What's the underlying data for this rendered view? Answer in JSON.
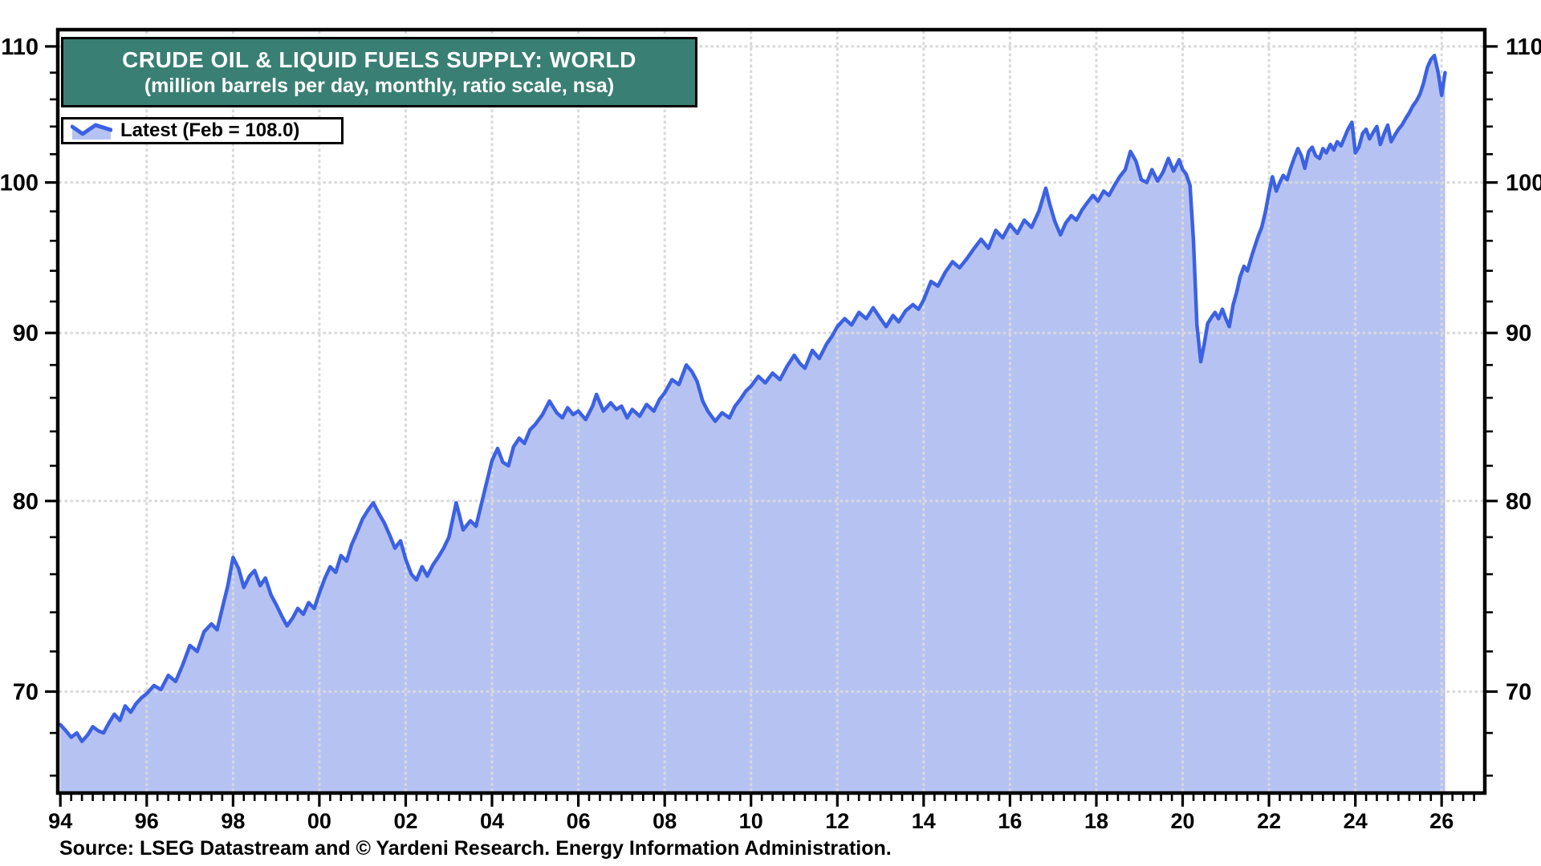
{
  "title": {
    "line1": "CRUDE OIL & LIQUID FUELS SUPPLY: WORLD",
    "line2": "(million barrels per day, monthly, ratio scale, nsa)"
  },
  "legend": {
    "label": "Latest (Feb = 108.0)",
    "latest_month": "Feb",
    "latest_value": 108.0
  },
  "source": "Source: LSEG Datastream and © Yardeni Research. Energy Information Administration.",
  "colors": {
    "title_bg": "#3a7f73",
    "line": "#3c61e2",
    "fill": "#b6c3f2",
    "grid": "#d9d9d9",
    "axis": "#000000",
    "text": "#000000"
  },
  "chart_data": {
    "type": "area",
    "title": "CRUDE OIL & LIQUID FUELS SUPPLY: WORLD",
    "subtitle": "(million barrels per day, monthly, ratio scale, nsa)",
    "series_name": "World crude oil & liquid fuels supply",
    "units": "million barrels per day",
    "frequency": "monthly",
    "y_scale": "log",
    "xlim": [
      1993.94,
      2027.0
    ],
    "ylim": [
      65.2,
      111.3
    ],
    "grid": true,
    "x_tick_years": [
      1994,
      1996,
      1998,
      2000,
      2002,
      2004,
      2006,
      2008,
      2010,
      2012,
      2014,
      2016,
      2018,
      2020,
      2022,
      2024,
      2026
    ],
    "x_tick_labels": [
      "94",
      "96",
      "98",
      "00",
      "02",
      "04",
      "06",
      "08",
      "10",
      "12",
      "14",
      "16",
      "18",
      "20",
      "22",
      "24",
      "26"
    ],
    "x_minor_step": 0.25,
    "x_grid_years": [
      1996,
      1998,
      2000,
      2002,
      2004,
      2006,
      2008,
      2010,
      2012,
      2014,
      2016,
      2018,
      2020,
      2022,
      2024,
      2026
    ],
    "y_ticks_major": [
      70,
      80,
      90,
      100,
      110
    ],
    "y_minor_ticks": [
      66,
      68,
      72,
      74,
      76,
      78,
      82,
      84,
      86,
      88,
      92,
      94,
      96,
      98,
      102,
      104,
      106,
      108
    ],
    "points": [
      [
        1994.0,
        68.4
      ],
      [
        1994.13,
        68.1
      ],
      [
        1994.25,
        67.8
      ],
      [
        1994.38,
        68.0
      ],
      [
        1994.5,
        67.6
      ],
      [
        1994.63,
        67.9
      ],
      [
        1994.75,
        68.3
      ],
      [
        1994.88,
        68.1
      ],
      [
        1995.0,
        68.0
      ],
      [
        1995.13,
        68.5
      ],
      [
        1995.25,
        68.9
      ],
      [
        1995.38,
        68.6
      ],
      [
        1995.5,
        69.3
      ],
      [
        1995.63,
        69.0
      ],
      [
        1995.75,
        69.4
      ],
      [
        1995.88,
        69.7
      ],
      [
        1996.0,
        69.9
      ],
      [
        1996.17,
        70.3
      ],
      [
        1996.33,
        70.1
      ],
      [
        1996.5,
        70.8
      ],
      [
        1996.67,
        70.5
      ],
      [
        1996.83,
        71.3
      ],
      [
        1997.0,
        72.3
      ],
      [
        1997.17,
        72.0
      ],
      [
        1997.33,
        73.0
      ],
      [
        1997.5,
        73.4
      ],
      [
        1997.63,
        73.1
      ],
      [
        1997.75,
        74.2
      ],
      [
        1997.88,
        75.4
      ],
      [
        1998.0,
        76.9
      ],
      [
        1998.13,
        76.3
      ],
      [
        1998.25,
        75.3
      ],
      [
        1998.38,
        75.9
      ],
      [
        1998.5,
        76.2
      ],
      [
        1998.63,
        75.4
      ],
      [
        1998.75,
        75.8
      ],
      [
        1998.88,
        74.9
      ],
      [
        1999.0,
        74.4
      ],
      [
        1999.13,
        73.8
      ],
      [
        1999.25,
        73.3
      ],
      [
        1999.38,
        73.7
      ],
      [
        1999.5,
        74.2
      ],
      [
        1999.63,
        73.9
      ],
      [
        1999.75,
        74.5
      ],
      [
        1999.88,
        74.2
      ],
      [
        2000.0,
        75.0
      ],
      [
        2000.13,
        75.8
      ],
      [
        2000.25,
        76.4
      ],
      [
        2000.38,
        76.1
      ],
      [
        2000.5,
        77.0
      ],
      [
        2000.63,
        76.7
      ],
      [
        2000.75,
        77.6
      ],
      [
        2000.88,
        78.3
      ],
      [
        2001.0,
        79.0
      ],
      [
        2001.13,
        79.5
      ],
      [
        2001.25,
        79.9
      ],
      [
        2001.38,
        79.3
      ],
      [
        2001.5,
        78.8
      ],
      [
        2001.63,
        78.1
      ],
      [
        2001.75,
        77.4
      ],
      [
        2001.88,
        77.8
      ],
      [
        2002.0,
        76.8
      ],
      [
        2002.13,
        76.0
      ],
      [
        2002.25,
        75.7
      ],
      [
        2002.38,
        76.4
      ],
      [
        2002.5,
        75.9
      ],
      [
        2002.63,
        76.5
      ],
      [
        2002.75,
        76.9
      ],
      [
        2002.88,
        77.4
      ],
      [
        2003.0,
        78.0
      ],
      [
        2003.17,
        79.9
      ],
      [
        2003.33,
        78.4
      ],
      [
        2003.5,
        78.9
      ],
      [
        2003.63,
        78.6
      ],
      [
        2003.75,
        79.8
      ],
      [
        2003.88,
        81.1
      ],
      [
        2004.0,
        82.3
      ],
      [
        2004.13,
        83.0
      ],
      [
        2004.25,
        82.2
      ],
      [
        2004.38,
        82.0
      ],
      [
        2004.5,
        83.1
      ],
      [
        2004.63,
        83.6
      ],
      [
        2004.75,
        83.3
      ],
      [
        2004.88,
        84.1
      ],
      [
        2005.0,
        84.4
      ],
      [
        2005.17,
        85.0
      ],
      [
        2005.33,
        85.8
      ],
      [
        2005.5,
        85.1
      ],
      [
        2005.63,
        84.8
      ],
      [
        2005.75,
        85.4
      ],
      [
        2005.88,
        85.0
      ],
      [
        2006.0,
        85.2
      ],
      [
        2006.17,
        84.7
      ],
      [
        2006.33,
        85.5
      ],
      [
        2006.42,
        86.2
      ],
      [
        2006.58,
        85.2
      ],
      [
        2006.75,
        85.7
      ],
      [
        2006.88,
        85.3
      ],
      [
        2007.0,
        85.5
      ],
      [
        2007.13,
        84.8
      ],
      [
        2007.25,
        85.3
      ],
      [
        2007.42,
        84.9
      ],
      [
        2007.58,
        85.6
      ],
      [
        2007.75,
        85.2
      ],
      [
        2007.88,
        85.9
      ],
      [
        2008.0,
        86.3
      ],
      [
        2008.17,
        87.1
      ],
      [
        2008.33,
        86.8
      ],
      [
        2008.5,
        88.0
      ],
      [
        2008.63,
        87.6
      ],
      [
        2008.75,
        87.0
      ],
      [
        2008.88,
        85.8
      ],
      [
        2009.0,
        85.2
      ],
      [
        2009.17,
        84.6
      ],
      [
        2009.33,
        85.1
      ],
      [
        2009.5,
        84.8
      ],
      [
        2009.63,
        85.5
      ],
      [
        2009.75,
        85.9
      ],
      [
        2009.88,
        86.4
      ],
      [
        2010.0,
        86.7
      ],
      [
        2010.17,
        87.3
      ],
      [
        2010.33,
        86.9
      ],
      [
        2010.5,
        87.5
      ],
      [
        2010.67,
        87.1
      ],
      [
        2010.83,
        87.9
      ],
      [
        2011.0,
        88.6
      ],
      [
        2011.13,
        88.1
      ],
      [
        2011.25,
        87.8
      ],
      [
        2011.42,
        88.9
      ],
      [
        2011.58,
        88.4
      ],
      [
        2011.75,
        89.3
      ],
      [
        2011.88,
        89.8
      ],
      [
        2012.0,
        90.4
      ],
      [
        2012.17,
        90.9
      ],
      [
        2012.33,
        90.5
      ],
      [
        2012.5,
        91.3
      ],
      [
        2012.67,
        90.9
      ],
      [
        2012.83,
        91.6
      ],
      [
        2013.0,
        90.9
      ],
      [
        2013.13,
        90.4
      ],
      [
        2013.29,
        91.1
      ],
      [
        2013.42,
        90.7
      ],
      [
        2013.58,
        91.4
      ],
      [
        2013.75,
        91.8
      ],
      [
        2013.88,
        91.5
      ],
      [
        2014.0,
        92.1
      ],
      [
        2014.17,
        93.3
      ],
      [
        2014.33,
        93.0
      ],
      [
        2014.5,
        93.9
      ],
      [
        2014.67,
        94.6
      ],
      [
        2014.83,
        94.2
      ],
      [
        2015.0,
        94.8
      ],
      [
        2015.17,
        95.5
      ],
      [
        2015.33,
        96.1
      ],
      [
        2015.5,
        95.5
      ],
      [
        2015.67,
        96.7
      ],
      [
        2015.83,
        96.2
      ],
      [
        2016.0,
        97.1
      ],
      [
        2016.17,
        96.5
      ],
      [
        2016.33,
        97.4
      ],
      [
        2016.5,
        96.9
      ],
      [
        2016.67,
        98.0
      ],
      [
        2016.83,
        99.6
      ],
      [
        2016.92,
        98.5
      ],
      [
        2017.04,
        97.3
      ],
      [
        2017.17,
        96.4
      ],
      [
        2017.29,
        97.2
      ],
      [
        2017.42,
        97.7
      ],
      [
        2017.54,
        97.4
      ],
      [
        2017.67,
        98.1
      ],
      [
        2017.79,
        98.6
      ],
      [
        2017.92,
        99.1
      ],
      [
        2018.04,
        98.7
      ],
      [
        2018.17,
        99.4
      ],
      [
        2018.29,
        99.1
      ],
      [
        2018.42,
        99.8
      ],
      [
        2018.54,
        100.4
      ],
      [
        2018.67,
        100.9
      ],
      [
        2018.79,
        102.2
      ],
      [
        2018.92,
        101.5
      ],
      [
        2019.04,
        100.2
      ],
      [
        2019.17,
        100.0
      ],
      [
        2019.29,
        100.9
      ],
      [
        2019.42,
        100.1
      ],
      [
        2019.54,
        100.7
      ],
      [
        2019.67,
        101.7
      ],
      [
        2019.79,
        100.8
      ],
      [
        2019.92,
        101.6
      ],
      [
        2020.0,
        100.9
      ],
      [
        2020.08,
        100.6
      ],
      [
        2020.17,
        99.8
      ],
      [
        2020.25,
        96.0
      ],
      [
        2020.33,
        90.5
      ],
      [
        2020.42,
        88.2
      ],
      [
        2020.5,
        89.3
      ],
      [
        2020.58,
        90.6
      ],
      [
        2020.67,
        91.0
      ],
      [
        2020.75,
        91.3
      ],
      [
        2020.83,
        90.9
      ],
      [
        2020.92,
        91.5
      ],
      [
        2021.0,
        90.9
      ],
      [
        2021.08,
        90.4
      ],
      [
        2021.17,
        91.8
      ],
      [
        2021.25,
        92.6
      ],
      [
        2021.33,
        93.6
      ],
      [
        2021.42,
        94.3
      ],
      [
        2021.5,
        94.0
      ],
      [
        2021.58,
        94.8
      ],
      [
        2021.67,
        95.6
      ],
      [
        2021.75,
        96.3
      ],
      [
        2021.83,
        96.9
      ],
      [
        2021.92,
        98.0
      ],
      [
        2022.0,
        99.3
      ],
      [
        2022.08,
        100.4
      ],
      [
        2022.17,
        99.4
      ],
      [
        2022.25,
        100.0
      ],
      [
        2022.33,
        100.5
      ],
      [
        2022.42,
        100.2
      ],
      [
        2022.5,
        101.0
      ],
      [
        2022.58,
        101.7
      ],
      [
        2022.67,
        102.4
      ],
      [
        2022.75,
        101.9
      ],
      [
        2022.83,
        101.0
      ],
      [
        2022.92,
        102.2
      ],
      [
        2023.0,
        102.5
      ],
      [
        2023.08,
        101.9
      ],
      [
        2023.17,
        101.7
      ],
      [
        2023.25,
        102.4
      ],
      [
        2023.33,
        102.1
      ],
      [
        2023.42,
        102.7
      ],
      [
        2023.5,
        102.3
      ],
      [
        2023.58,
        102.9
      ],
      [
        2023.67,
        102.6
      ],
      [
        2023.75,
        103.2
      ],
      [
        2023.83,
        103.8
      ],
      [
        2023.92,
        104.3
      ],
      [
        2024.0,
        102.1
      ],
      [
        2024.08,
        102.5
      ],
      [
        2024.17,
        103.5
      ],
      [
        2024.25,
        103.8
      ],
      [
        2024.33,
        103.1
      ],
      [
        2024.42,
        103.6
      ],
      [
        2024.5,
        104.0
      ],
      [
        2024.58,
        102.7
      ],
      [
        2024.67,
        103.5
      ],
      [
        2024.75,
        104.1
      ],
      [
        2024.83,
        102.9
      ],
      [
        2024.92,
        103.4
      ],
      [
        2025.0,
        103.8
      ],
      [
        2025.08,
        104.1
      ],
      [
        2025.17,
        104.6
      ],
      [
        2025.25,
        105.0
      ],
      [
        2025.33,
        105.5
      ],
      [
        2025.42,
        105.9
      ],
      [
        2025.5,
        106.4
      ],
      [
        2025.58,
        107.2
      ],
      [
        2025.67,
        108.4
      ],
      [
        2025.75,
        109.0
      ],
      [
        2025.83,
        109.3
      ],
      [
        2025.92,
        108.0
      ],
      [
        2026.0,
        106.3
      ],
      [
        2026.08,
        108.0
      ]
    ]
  }
}
